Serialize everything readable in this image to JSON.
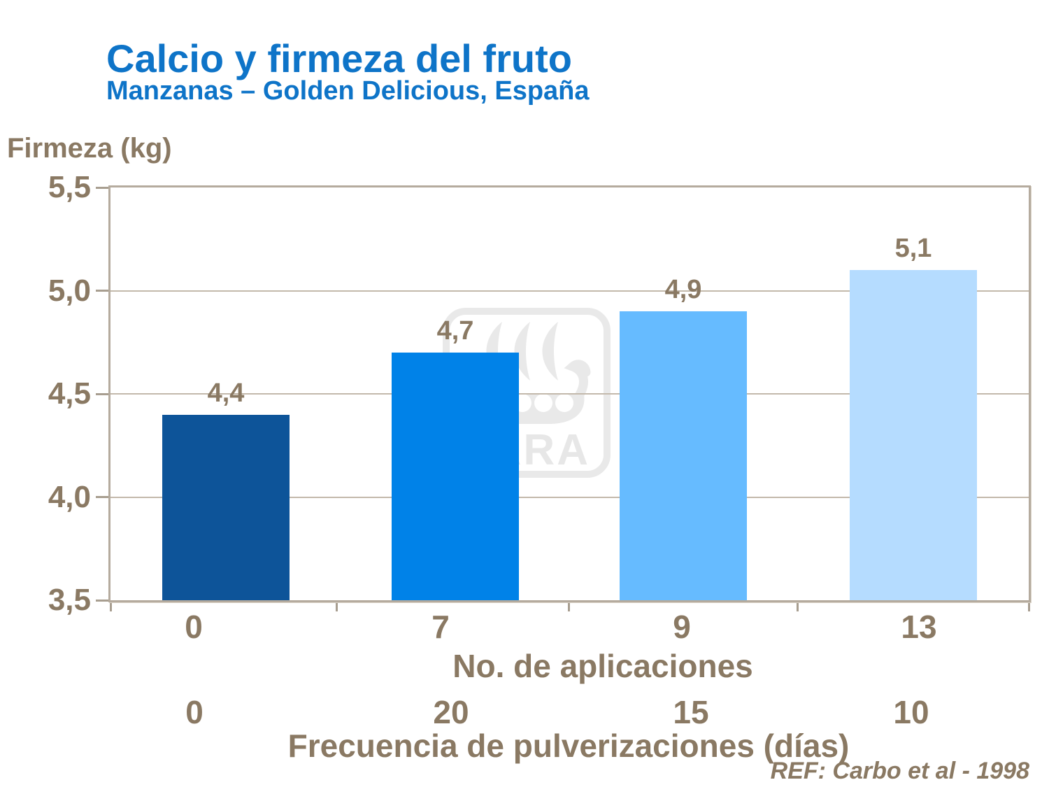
{
  "title": "Calcio y firmeza del fruto",
  "subtitle": "Manzanas – Golden Delicious, España",
  "reference": "REF: Carbo et al - 1998",
  "watermark_text": "YARA",
  "colors": {
    "title_blue": "#0e74c8",
    "text_brown": "#8a7963",
    "axis_frame": "#b5ab9e",
    "gridline": "#c3b9ab",
    "watermark_gray": "#e9e9e9"
  },
  "chart_data": {
    "type": "bar",
    "title": "Calcio y firmeza del fruto",
    "subtitle": "Manzanas – Golden Delicious, España",
    "ylabel": "Firmeza (kg)",
    "xlabel_primary": "No. de aplicaciones",
    "xlabel_secondary": "Frecuencia de pulverizaciones (días)",
    "categories_applications": [
      "0",
      "7",
      "9",
      "13"
    ],
    "categories_frequency": [
      "0",
      "20",
      "15",
      "10"
    ],
    "values": [
      4.4,
      4.7,
      4.9,
      5.1
    ],
    "value_labels": [
      "4,4",
      "4,7",
      "4,9",
      "5,1"
    ],
    "ylim": [
      3.5,
      5.5
    ],
    "ytick_step": 0.5,
    "ytick_labels": [
      "5,5",
      "5,0",
      "4,5",
      "4,0",
      "3,5"
    ],
    "grid": true,
    "legend": "none",
    "bar_colors": [
      "#0d5499",
      "#0082e8",
      "#66bbff",
      "#b5dcff"
    ]
  }
}
